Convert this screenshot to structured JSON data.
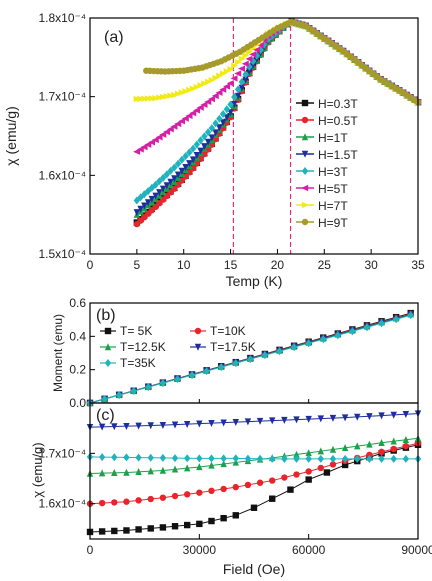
{
  "colors": {
    "0.3T": "#111111",
    "0.5T": "#e8242c",
    "1T": "#1aa14a",
    "1.5T": "#1d2f9c",
    "3T": "#21b3bd",
    "5T": "#d71fa6",
    "7T": "#f2ea13",
    "9T": "#a59a2a",
    "vline": "#e8307a"
  },
  "chart_data": [
    {
      "panel": "(a)",
      "type": "scatter",
      "xlabel": "Temp (K)",
      "ylabel": "χ (emu/g)",
      "xlim": [
        0,
        35
      ],
      "ylim": [
        0.00015,
        0.00018
      ],
      "xticks": [
        "0",
        "5",
        "10",
        "15",
        "20",
        "25",
        "30",
        "35"
      ],
      "yticks": [
        "1.5x10⁻⁴",
        "1.6x10⁻⁴",
        "1.7x10⁻⁴",
        "1.8x10⁻⁴"
      ],
      "legend": "right",
      "vlines": [
        15.3,
        21.4
      ],
      "series": [
        {
          "name": "H=0.3T",
          "marker": "square",
          "color_key": "0.3T",
          "x": [
            5,
            7,
            9,
            11,
            13,
            15,
            17,
            19,
            21,
            21.5,
            23,
            25,
            27,
            29,
            31,
            33,
            35
          ],
          "y": [
            0.000154,
            0.0001562,
            0.0001584,
            0.000161,
            0.000164,
            0.0001675,
            0.000173,
            0.000177,
            0.0001792,
            0.0001795,
            0.000179,
            0.0001774,
            0.0001758,
            0.000174,
            0.0001722,
            0.0001708,
            0.0001693
          ]
        },
        {
          "name": "H=0.5T",
          "marker": "circle",
          "color_key": "0.5T",
          "x": [
            5,
            7,
            9,
            11,
            13,
            15,
            17,
            19,
            21,
            21.5,
            23,
            25,
            27,
            29,
            31,
            33,
            35
          ],
          "y": [
            0.0001538,
            0.000156,
            0.0001583,
            0.0001609,
            0.0001639,
            0.0001674,
            0.0001729,
            0.0001769,
            0.0001792,
            0.0001795,
            0.000179,
            0.0001774,
            0.0001758,
            0.000174,
            0.0001722,
            0.0001708,
            0.0001693
          ]
        },
        {
          "name": "H=1T",
          "marker": "triangle-up",
          "color_key": "1T",
          "x": [
            5,
            7,
            9,
            11,
            13,
            15,
            17,
            19,
            21,
            21.5,
            23,
            25,
            27,
            29,
            31,
            33,
            35
          ],
          "y": [
            0.000155,
            0.000157,
            0.0001592,
            0.0001617,
            0.0001645,
            0.0001678,
            0.0001731,
            0.000177,
            0.0001792,
            0.0001795,
            0.000179,
            0.0001774,
            0.0001758,
            0.000174,
            0.0001722,
            0.0001708,
            0.0001693
          ]
        },
        {
          "name": "H=1.5T",
          "marker": "triangle-down",
          "color_key": "1.5T",
          "x": [
            5,
            7,
            9,
            11,
            13,
            15,
            17,
            19,
            21,
            21.5,
            23,
            25,
            27,
            29,
            31,
            33,
            35
          ],
          "y": [
            0.0001553,
            0.0001574,
            0.0001596,
            0.000162,
            0.0001648,
            0.000168,
            0.0001732,
            0.0001771,
            0.0001792,
            0.0001795,
            0.000179,
            0.0001774,
            0.0001758,
            0.000174,
            0.0001722,
            0.0001708,
            0.0001693
          ]
        },
        {
          "name": "H=3T",
          "marker": "diamond",
          "color_key": "3T",
          "x": [
            5,
            7,
            9,
            11,
            13,
            15,
            17,
            19,
            21,
            21.5,
            23,
            25,
            27,
            29,
            31,
            33,
            35
          ],
          "y": [
            0.0001568,
            0.0001588,
            0.000161,
            0.0001634,
            0.000166,
            0.000169,
            0.0001738,
            0.0001773,
            0.0001792,
            0.0001795,
            0.000179,
            0.0001774,
            0.0001758,
            0.000174,
            0.0001722,
            0.0001708,
            0.0001693
          ]
        },
        {
          "name": "H=5T",
          "marker": "triangle-left",
          "color_key": "5T",
          "x": [
            5,
            7,
            9,
            11,
            13,
            15,
            17,
            19,
            21,
            21.5,
            23,
            25,
            27,
            29,
            31,
            33,
            35
          ],
          "y": [
            0.000163,
            0.0001645,
            0.0001662,
            0.0001679,
            0.0001697,
            0.0001717,
            0.0001748,
            0.0001777,
            0.0001793,
            0.0001795,
            0.000179,
            0.0001774,
            0.0001758,
            0.000174,
            0.0001722,
            0.0001708,
            0.0001693
          ]
        },
        {
          "name": "H=7T",
          "marker": "triangle-right",
          "color_key": "7T",
          "x": [
            5,
            7,
            9,
            11,
            13,
            15,
            17,
            19,
            21,
            21.5,
            23,
            25,
            27,
            29,
            31,
            33,
            35
          ],
          "y": [
            0.0001697,
            0.0001698,
            0.0001702,
            0.000171,
            0.0001721,
            0.0001735,
            0.0001757,
            0.000178,
            0.0001793,
            0.0001795,
            0.000179,
            0.0001774,
            0.0001758,
            0.000174,
            0.0001722,
            0.0001708,
            0.0001693
          ]
        },
        {
          "name": "H=9T",
          "marker": "circle",
          "color_key": "9T",
          "x": [
            6,
            8,
            10,
            12,
            14,
            16,
            18,
            20,
            21.5,
            23,
            25,
            27,
            29,
            31,
            33,
            35
          ],
          "y": [
            0.0001733,
            0.0001732,
            0.0001733,
            0.0001737,
            0.0001745,
            0.0001757,
            0.0001772,
            0.0001787,
            0.0001795,
            0.000179,
            0.0001774,
            0.0001758,
            0.000174,
            0.0001722,
            0.0001708,
            0.0001693
          ]
        }
      ]
    },
    {
      "panel": "(b)",
      "type": "line",
      "xlabel": "",
      "ylabel": "Moment (emu)",
      "xlim": [
        0,
        90000
      ],
      "ylim": [
        0,
        0.6
      ],
      "yticks": [
        "0.0",
        "0.2",
        "0.4",
        "0.6"
      ],
      "legend": "top-left",
      "series": [
        {
          "name": "T= 5K",
          "marker": "square",
          "color_key": "0.3T",
          "slope": 6.13e-06
        },
        {
          "name": "T=10K",
          "marker": "circle",
          "color_key": "0.5T",
          "slope": 6.08e-06
        },
        {
          "name": "T=12.5K",
          "marker": "triangle-up",
          "color_key": "1T",
          "slope": 6.05e-06
        },
        {
          "name": "T=17.5K",
          "marker": "triangle-down",
          "color_key": "1.5T",
          "slope": 6.02e-06
        },
        {
          "name": "T=35K",
          "marker": "diamond",
          "color_key": "3T",
          "slope": 5.98e-06
        }
      ]
    },
    {
      "panel": "(c)",
      "type": "line",
      "xlabel": "Field (Oe)",
      "ylabel": "χ (emu/g)",
      "xlim": [
        0,
        90000
      ],
      "ylim": [
        0.000153,
        0.00018
      ],
      "xticks": [
        "0",
        "30000",
        "60000",
        "90000"
      ],
      "yticks": [
        "1.6x10⁻⁴",
        "1.7x10⁻⁴"
      ],
      "series": [
        {
          "name": "T= 5K",
          "marker": "square",
          "color_key": "0.3T",
          "x": [
            0,
            10000,
            20000,
            30000,
            40000,
            45000,
            50000,
            55000,
            60000,
            65000,
            70000,
            80000,
            90000
          ],
          "y": [
            0.0001544,
            0.0001547,
            0.0001553,
            0.000156,
            0.0001577,
            0.0001592,
            0.000161,
            0.0001628,
            0.0001648,
            0.0001662,
            0.0001677,
            0.00017,
            0.0001717
          ]
        },
        {
          "name": "T=10K",
          "marker": "circle",
          "color_key": "0.5T",
          "x": [
            0,
            10000,
            20000,
            30000,
            40000,
            50000,
            60000,
            70000,
            80000,
            90000
          ],
          "y": [
            0.00016,
            0.0001604,
            0.0001612,
            0.0001622,
            0.0001633,
            0.0001646,
            0.0001664,
            0.0001685,
            0.0001703,
            0.000172
          ]
        },
        {
          "name": "T=12.5K",
          "marker": "triangle-up",
          "color_key": "1T",
          "x": [
            0,
            10000,
            20000,
            30000,
            40000,
            50000,
            60000,
            70000,
            80000,
            90000
          ],
          "y": [
            0.000166,
            0.0001662,
            0.0001666,
            0.0001673,
            0.0001682,
            0.0001691,
            0.0001701,
            0.0001711,
            0.0001721,
            0.000173
          ]
        },
        {
          "name": "T=17.5K",
          "marker": "triangle-down",
          "color_key": "1.5T",
          "x": [
            0,
            10000,
            20000,
            30000,
            40000,
            50000,
            60000,
            70000,
            80000,
            90000
          ],
          "y": [
            0.0001752,
            0.0001754,
            0.0001756,
            0.0001759,
            0.0001762,
            0.0001765,
            0.0001768,
            0.0001771,
            0.0001775,
            0.0001779
          ]
        },
        {
          "name": "T=35K",
          "marker": "diamond",
          "color_key": "3T",
          "x": [
            0,
            10000,
            20000,
            30000,
            40000,
            50000,
            60000,
            70000,
            80000,
            90000
          ],
          "y": [
            0.0001693,
            0.0001692,
            0.0001691,
            0.000169,
            0.000169,
            0.0001689,
            0.0001689,
            0.0001689,
            0.0001689,
            0.0001689
          ]
        }
      ]
    }
  ]
}
